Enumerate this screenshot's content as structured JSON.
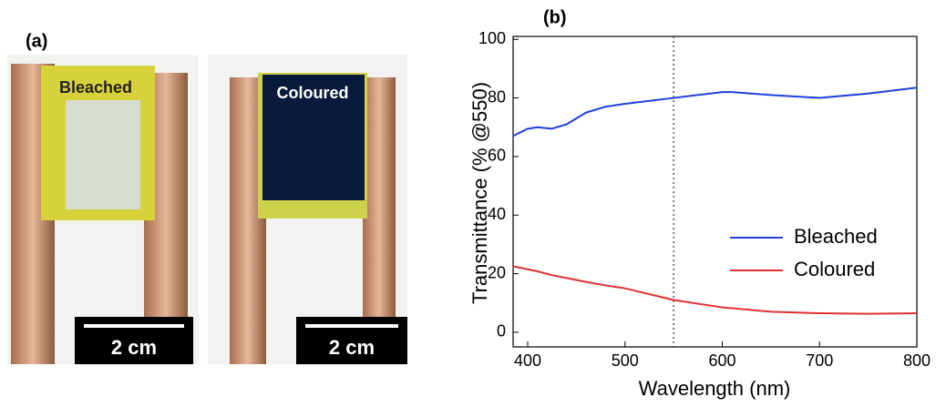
{
  "figure_a": {
    "label": "(a)",
    "photos": [
      {
        "label": "Bleached",
        "scale_bar": "2 cm"
      },
      {
        "label": "Coloured",
        "scale_bar": "2 cm"
      }
    ]
  },
  "chart_data": {
    "type": "line",
    "panel_label": "(b)",
    "x_label": "Wavelength (nm)",
    "y_label": "Transmittance (% @550)",
    "x": [
      385,
      400,
      410,
      425,
      440,
      460,
      480,
      500,
      550,
      600,
      610,
      650,
      700,
      750,
      800
    ],
    "series": [
      {
        "name": "Bleached",
        "color": "#1f3fe0",
        "values": [
          67,
          69.5,
          70,
          69.5,
          71,
          75,
          77,
          78,
          80,
          82,
          82,
          81,
          80,
          81.5,
          83.5
        ]
      },
      {
        "name": "Coloured",
        "color": "#e03030",
        "values": [
          22.5,
          21.5,
          20.8,
          19.5,
          18.5,
          17.2,
          16,
          15,
          11,
          8.5,
          8.2,
          7,
          6.5,
          6.3,
          6.5
        ]
      }
    ],
    "vline": 550,
    "xlim": [
      385,
      800
    ],
    "xticks": [
      400,
      500,
      600,
      700,
      800
    ],
    "ylim": [
      -5,
      101
    ],
    "yticks": [
      0,
      20,
      40,
      60,
      80,
      100
    ],
    "legend": "lower right"
  }
}
